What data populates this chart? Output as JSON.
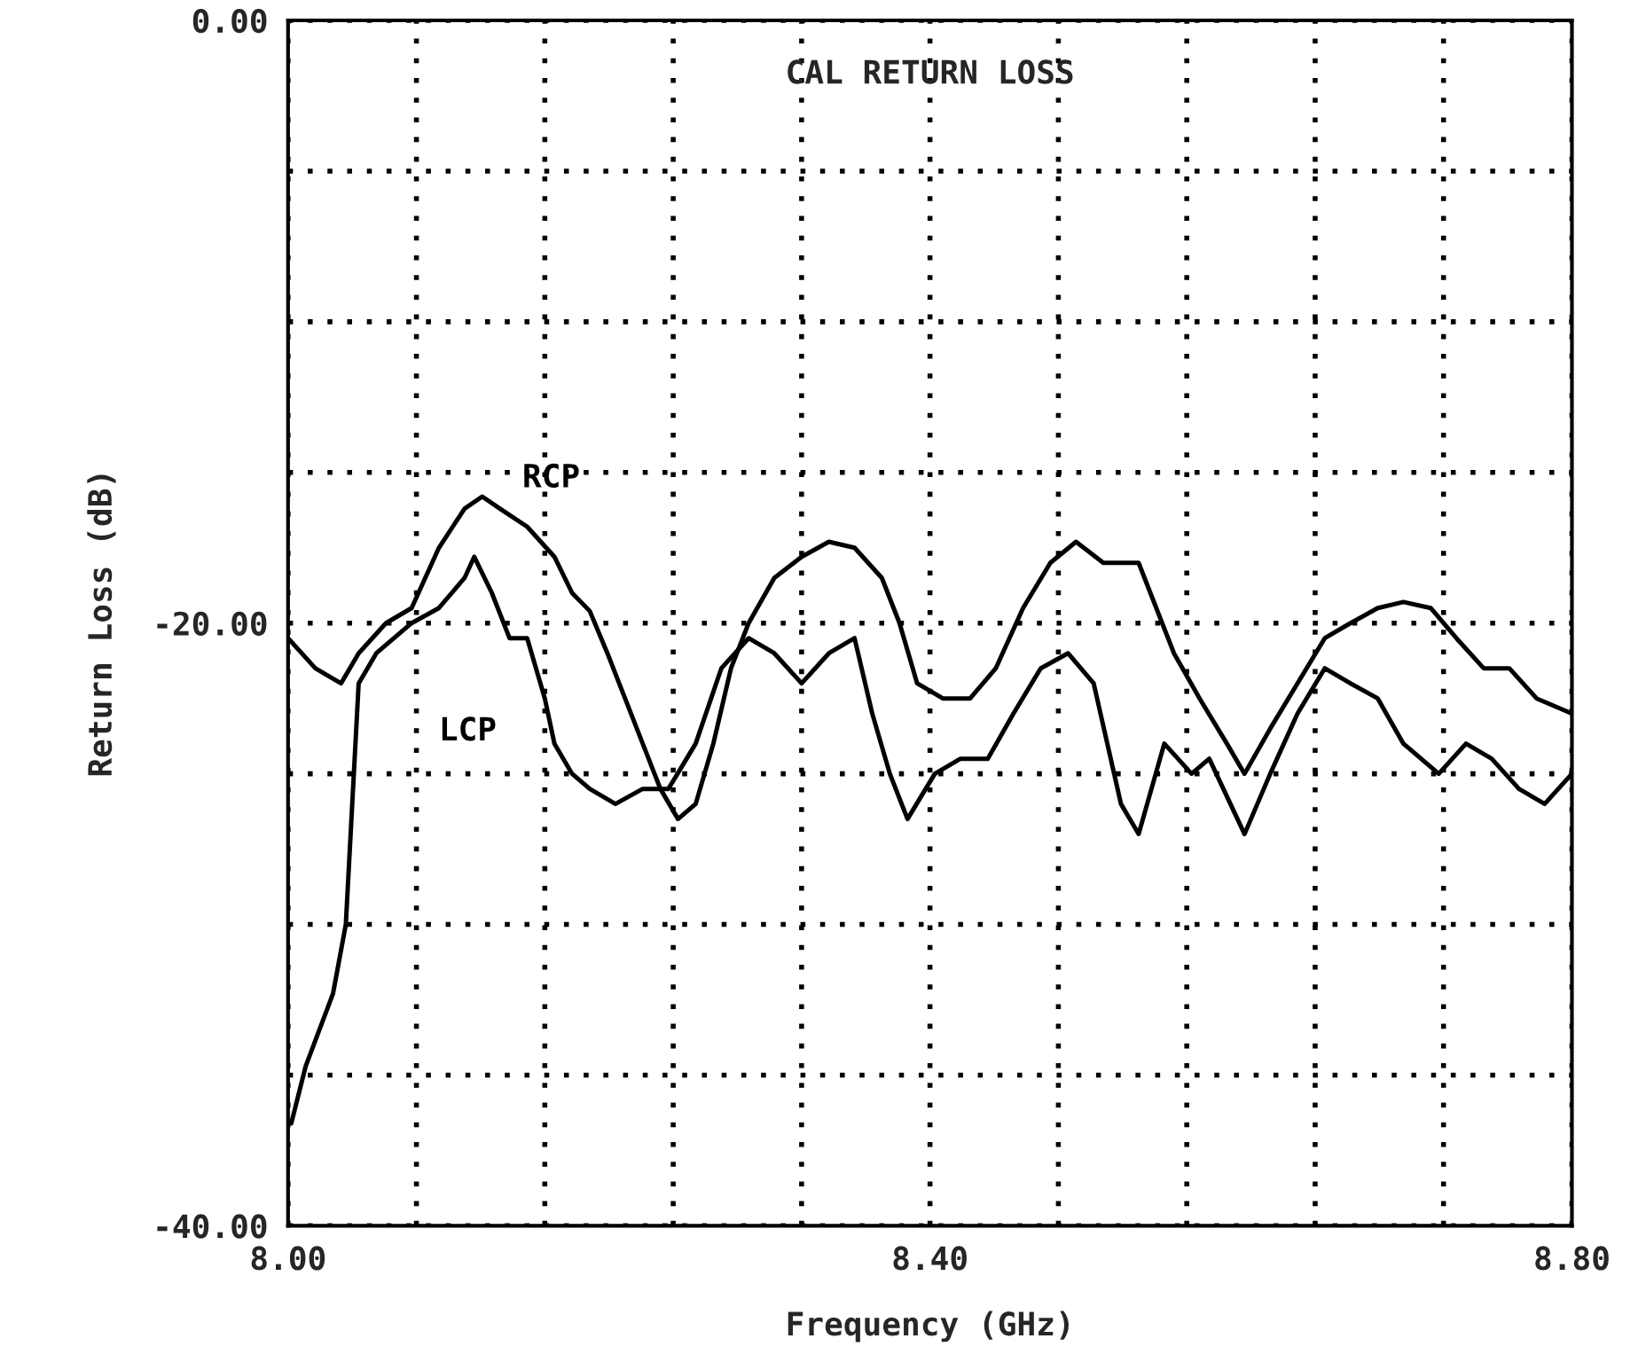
{
  "chart_data": {
    "type": "line",
    "title": "CAL RETURN LOSS",
    "xlabel": "Frequency (GHz)",
    "ylabel": "Return Loss (dB)",
    "xlim": [
      8.0,
      8.8
    ],
    "ylim": [
      -40,
      0
    ],
    "xticks": [
      {
        "value": 8.0,
        "label": "8.00"
      },
      {
        "value": 8.08,
        "label": null
      },
      {
        "value": 8.16,
        "label": null
      },
      {
        "value": 8.24,
        "label": null
      },
      {
        "value": 8.32,
        "label": null
      },
      {
        "value": 8.4,
        "label": "8.40"
      },
      {
        "value": 8.48,
        "label": null
      },
      {
        "value": 8.56,
        "label": null
      },
      {
        "value": 8.64,
        "label": null
      },
      {
        "value": 8.72,
        "label": null
      },
      {
        "value": 8.8,
        "label": "8.80"
      }
    ],
    "yticks": [
      {
        "value": 0,
        "label": "0.00"
      },
      {
        "value": -5,
        "label": null
      },
      {
        "value": -10,
        "label": null
      },
      {
        "value": -15,
        "label": null
      },
      {
        "value": -20,
        "label": "-20.00"
      },
      {
        "value": -25,
        "label": null
      },
      {
        "value": -30,
        "label": null
      },
      {
        "value": -35,
        "label": null
      },
      {
        "value": -40,
        "label": "-40.00"
      }
    ],
    "grid": true,
    "line_style": "solid",
    "marker": "none",
    "series": [
      {
        "name": "RCP",
        "color": "#000000",
        "x": [
          8.0,
          8.017,
          8.033,
          8.044,
          8.061,
          8.077,
          8.094,
          8.11,
          8.121,
          8.132,
          8.149,
          8.166,
          8.177,
          8.188,
          8.199,
          8.21,
          8.221,
          8.232,
          8.243,
          8.254,
          8.265,
          8.276,
          8.287,
          8.303,
          8.32,
          8.337,
          8.353,
          8.37,
          8.381,
          8.392,
          8.408,
          8.425,
          8.441,
          8.458,
          8.475,
          8.491,
          8.508,
          8.53,
          8.552,
          8.568,
          8.585,
          8.596,
          8.612,
          8.629,
          8.646,
          8.662,
          8.679,
          8.695,
          8.712,
          8.728,
          8.745,
          8.761,
          8.778,
          8.8
        ],
        "values": [
          -20.5,
          -21.5,
          -22,
          -21,
          -20,
          -19.5,
          -17.5,
          -16.2,
          -15.8,
          -16.2,
          -16.8,
          -17.8,
          -19,
          -19.6,
          -21,
          -22.5,
          -24,
          -25.5,
          -26.5,
          -26,
          -24,
          -21.5,
          -20,
          -18.5,
          -17.8,
          -17.3,
          -17.5,
          -18.5,
          -20,
          -22,
          -22.5,
          -22.5,
          -21.5,
          -19.5,
          -18,
          -17.3,
          -18,
          -18,
          -21,
          -22.5,
          -24,
          -25,
          -23.5,
          -22,
          -20.5,
          -20,
          -19.5,
          -19.3,
          -19.5,
          -20.5,
          -21.5,
          -21.5,
          -22.5,
          -23
        ]
      },
      {
        "name": "LCP",
        "color": "#000000",
        "x": [
          8.002,
          8.011,
          8.028,
          8.036,
          8.039,
          8.044,
          8.055,
          8.077,
          8.094,
          8.11,
          8.116,
          8.127,
          8.138,
          8.149,
          8.16,
          8.166,
          8.177,
          8.188,
          8.204,
          8.221,
          8.237,
          8.254,
          8.27,
          8.287,
          8.303,
          8.32,
          8.337,
          8.353,
          8.364,
          8.375,
          8.386,
          8.403,
          8.419,
          8.436,
          8.452,
          8.469,
          8.486,
          8.502,
          8.519,
          8.53,
          8.546,
          8.563,
          8.574,
          8.596,
          8.612,
          8.629,
          8.646,
          8.662,
          8.679,
          8.695,
          8.717,
          8.734,
          8.75,
          8.767,
          8.783,
          8.8
        ],
        "values": [
          -36.6,
          -34.7,
          -32.3,
          -30,
          -27,
          -22,
          -21,
          -20,
          -19.5,
          -18.5,
          -17.8,
          -19,
          -20.5,
          -20.5,
          -22.5,
          -24,
          -25,
          -25.5,
          -26,
          -25.5,
          -25.5,
          -24,
          -21.5,
          -20.5,
          -21,
          -22,
          -21,
          -20.5,
          -23,
          -25,
          -26.5,
          -25,
          -24.5,
          -24.5,
          -23,
          -21.5,
          -21,
          -22,
          -26,
          -27,
          -24,
          -25,
          -24.5,
          -27,
          -25,
          -23,
          -21.5,
          -22,
          -22.5,
          -24,
          -25,
          -24,
          -24.5,
          -25.5,
          -26,
          -25
        ]
      }
    ]
  }
}
